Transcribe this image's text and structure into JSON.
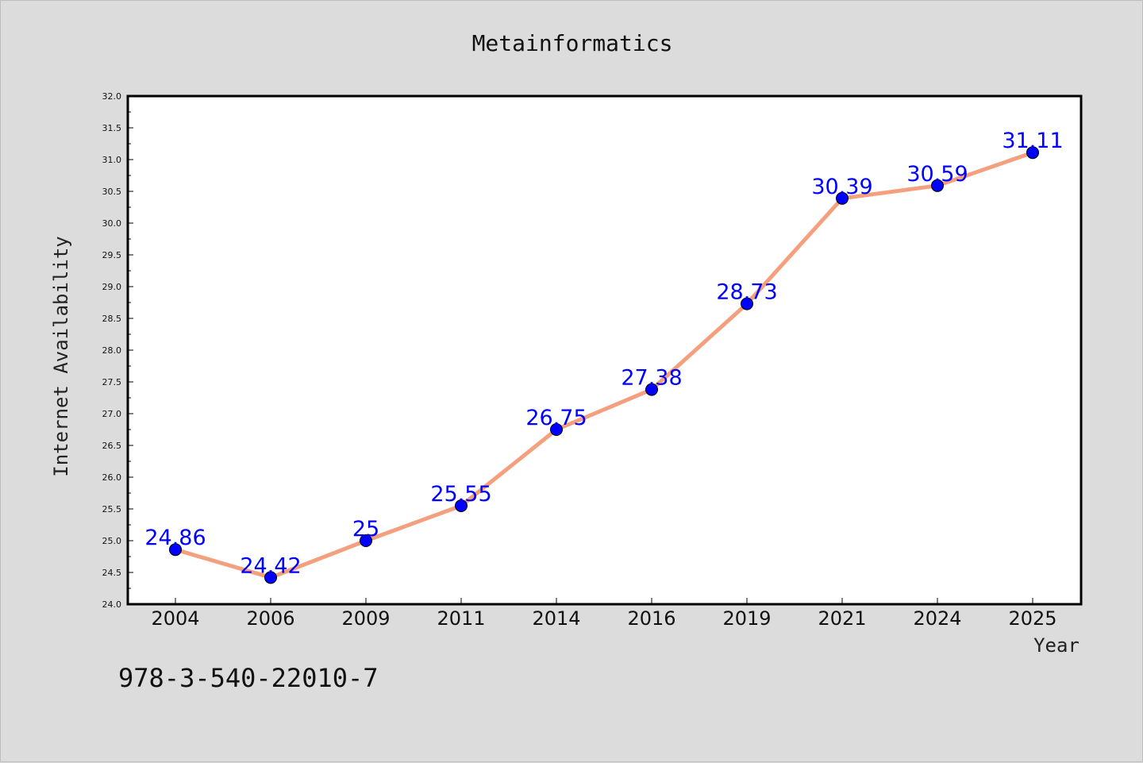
{
  "chart_data": {
    "type": "line",
    "title": "Metainformatics",
    "xlabel": "Year",
    "ylabel": "Internet Availability",
    "categories": [
      "2004",
      "2006",
      "2009",
      "2011",
      "2014",
      "2016",
      "2019",
      "2021",
      "2024",
      "2025"
    ],
    "series": [
      {
        "values": [
          24.86,
          24.42,
          25,
          25.55,
          26.75,
          27.38,
          28.73,
          30.39,
          30.59,
          31.11
        ],
        "data_labels": [
          "24.86",
          "24.42",
          "25",
          "25.55",
          "26.75",
          "27.38",
          "28.73",
          "30.39",
          "30.59",
          "31.11"
        ],
        "line_color": "#f4a07e",
        "marker_color": "#0000ff"
      }
    ],
    "ylim": [
      24.0,
      32.0
    ],
    "yticks": [
      "24.0",
      "24.5",
      "25.0",
      "25.5",
      "26.0",
      "26.5",
      "27.0",
      "27.5",
      "28.0",
      "28.5",
      "29.0",
      "29.5",
      "30.0",
      "30.5",
      "31.0",
      "31.5",
      "32.0"
    ],
    "grid": false,
    "legend": "none",
    "label_color": "#0000ff",
    "background": "#dcdcdc",
    "plot_background": "#ffffff"
  },
  "footer_text": "978-3-540-22010-7"
}
